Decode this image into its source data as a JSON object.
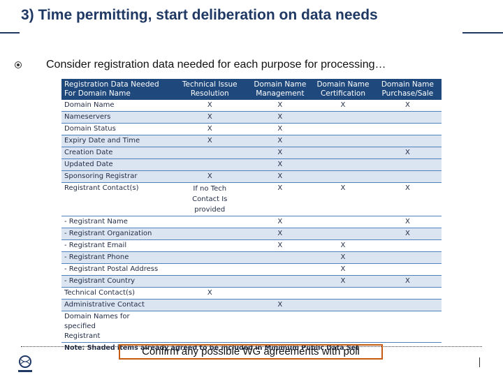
{
  "title": "3) Time permitting, start deliberation on data needs",
  "bullet": "Consider registration data needed for each purpose for processing…",
  "table": {
    "header": [
      "Registration Data Needed For Domain Name",
      "Technical Issue Resolution",
      "Domain Name Management",
      "Domain Name Certification",
      "Domain Name Purchase/Sale"
    ],
    "rows": [
      [
        "Domain Name",
        "X",
        "X",
        "X",
        "X"
      ],
      [
        "Nameservers",
        "X",
        "X",
        null,
        null
      ],
      [
        "Domain Status",
        "X",
        "X",
        null,
        null
      ],
      [
        "Expiry Date and Time",
        "X",
        "X",
        null,
        null
      ],
      [
        "Creation Date",
        null,
        "X",
        null,
        "X"
      ],
      [
        "Updated Date",
        null,
        "X",
        null,
        null
      ],
      [
        "Sponsoring Registrar",
        "X",
        "X",
        null,
        null
      ],
      [
        "Registrant Contact(s)",
        "If no Tech Contact Is provided",
        "X",
        "X",
        "X"
      ],
      [
        "- Registrant Name",
        null,
        "X",
        null,
        "X"
      ],
      [
        "- Registrant Organization",
        null,
        "X",
        null,
        "X"
      ],
      [
        "- Registrant Email",
        null,
        "X",
        "X",
        null
      ],
      [
        "- Registrant Phone",
        null,
        null,
        "X",
        null
      ],
      [
        "- Registrant Postal Address",
        null,
        null,
        "X",
        null
      ],
      [
        "- Registrant Country",
        null,
        null,
        "X",
        "X"
      ],
      [
        "Technical Contact(s)",
        "X",
        null,
        null,
        null
      ],
      [
        "Administrative Contact",
        null,
        "X",
        null,
        null
      ],
      [
        "Domain Names for specified Registrant",
        null,
        null,
        null,
        null
      ]
    ],
    "note": "Note: Shaded items already agreed to be included in Minimum Public Data Set"
  },
  "callout": "Confirm any possible WG agreements with poll"
}
